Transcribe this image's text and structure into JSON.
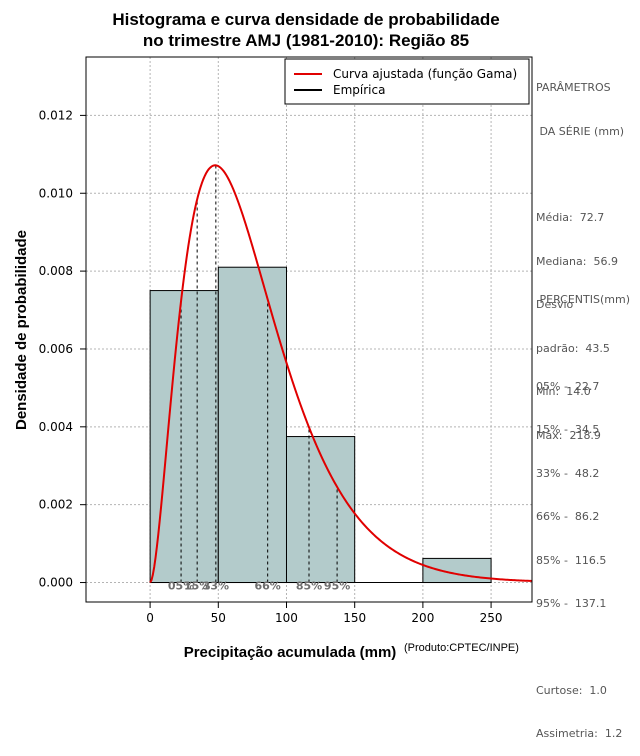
{
  "chart_data": {
    "type": "bar",
    "title_line1": "Histograma e curva densidade de probabilidade",
    "title_line2": "no trimestre AMJ (1981-2010): Região 85",
    "xlabel": "Precipitação acumulada (mm)",
    "ylabel": "Densidade de probabilidade",
    "credit": "(Produto:CPTEC/INPE)",
    "xlim": [
      -47,
      280
    ],
    "ylim": [
      -0.0005,
      0.0135
    ],
    "x_ticks": [
      0,
      50,
      100,
      150,
      200,
      250
    ],
    "y_ticks": [
      0.0,
      0.002,
      0.004,
      0.006,
      0.008,
      0.01,
      0.012
    ],
    "y_tick_labels": [
      "0.000",
      "0.002",
      "0.004",
      "0.006",
      "0.008",
      "0.010",
      "0.012"
    ],
    "grid": true,
    "legend_position": "top-right",
    "bins": [
      {
        "start": 0,
        "end": 50,
        "density": 0.0075
      },
      {
        "start": 50,
        "end": 100,
        "density": 0.0081
      },
      {
        "start": 100,
        "end": 150,
        "density": 0.00375
      },
      {
        "start": 150,
        "end": 200,
        "density": 0.0
      },
      {
        "start": 200,
        "end": 250,
        "density": 0.00062
      }
    ],
    "bar_color": "#b3cbcb",
    "series": [
      {
        "name": "Curva ajustada (função Gama)",
        "color": "#e00000"
      },
      {
        "name": "Empírica",
        "color": "#000000"
      }
    ],
    "gamma_fit": {
      "shape": 2.8,
      "scale": 26.5
    },
    "percentile_lines": [
      {
        "label": "05%",
        "x": 22.7
      },
      {
        "label": "15%",
        "x": 34.5
      },
      {
        "label": "33%",
        "x": 48.2
      },
      {
        "label": "66%",
        "x": 86.2
      },
      {
        "label": "85%",
        "x": 116.5
      },
      {
        "label": "95%",
        "x": 137.1
      }
    ]
  },
  "side_panel": {
    "params_title_1": "PARÂMETROS",
    "params_title_2": " DA SÉRIE (mm)",
    "media": "Média:  72.7",
    "mediana": "Mediana:  56.9",
    "desvio_1": "Desvio",
    "desvio_2": "padrão:  43.5",
    "min": "Mín:  14.0",
    "max": "Máx:  218.9",
    "percentis_title": " PERCENTIS(mm)",
    "p05": "05% -  22.7",
    "p15": "15% -  34.5",
    "p33": "33% -  48.2",
    "p66": "66% -  86.2",
    "p85": "85% -  116.5",
    "p95": "95% -  137.1",
    "curtose": "Curtose:  1.0",
    "assimetria": "Assimetria:  1.2"
  }
}
